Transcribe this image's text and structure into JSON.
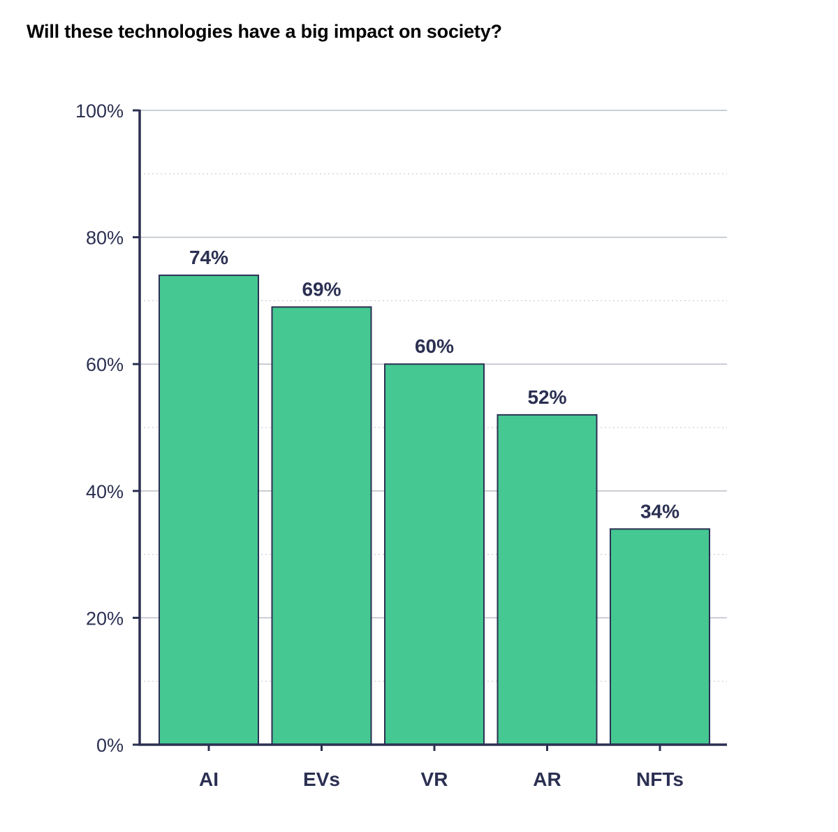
{
  "chart_data": {
    "type": "bar",
    "title": "Will these technologies have a big impact on society?",
    "categories": [
      "AI",
      "EVs",
      "VR",
      "AR",
      "NFTs"
    ],
    "values": [
      74,
      69,
      60,
      52,
      34
    ],
    "value_labels": [
      "74%",
      "69%",
      "60%",
      "52%",
      "34%"
    ],
    "ylim": [
      0,
      100
    ],
    "yticks": [
      0,
      20,
      40,
      60,
      80,
      100
    ],
    "ytick_labels": [
      "0%",
      "20%",
      "40%",
      "60%",
      "80%",
      "100%"
    ],
    "minor_gridlines": [
      10,
      30,
      50,
      70,
      90
    ],
    "xlabel": "",
    "ylabel": "",
    "grid": true,
    "legend": "none"
  },
  "colors": {
    "bar_fill": "#45c891",
    "bar_stroke": "#2b3052",
    "axis": "#2b3052",
    "text": "#2b3052",
    "gridline": "#b8bec6",
    "minor_gridline": "#c8ccd2"
  }
}
